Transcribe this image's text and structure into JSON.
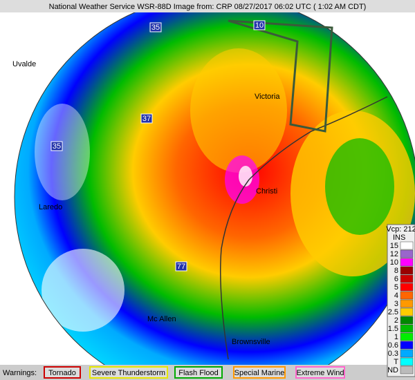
{
  "header": {
    "title": "National Weather Service WSR-88D Image from: CRP 08/27/2017 06:02 UTC ( 1:02 AM CDT)"
  },
  "cities": [
    {
      "label": "Uvalde"
    },
    {
      "label": "Victoria"
    },
    {
      "label": "Laredo"
    },
    {
      "label": "Mc Allen"
    },
    {
      "label": "Brownsville"
    },
    {
      "label": "Christi"
    }
  ],
  "highways": [
    "35",
    "10",
    "37",
    "35",
    "77"
  ],
  "legend": {
    "vcp": "Vcp: 212",
    "unit": "INS",
    "items": [
      {
        "label": "15",
        "color": "#ffffff"
      },
      {
        "label": "12",
        "color": "#9966cc"
      },
      {
        "label": "10",
        "color": "#ff00ff"
      },
      {
        "label": "8",
        "color": "#990000"
      },
      {
        "label": "6",
        "color": "#cc0000"
      },
      {
        "label": "5",
        "color": "#ff0000"
      },
      {
        "label": "4",
        "color": "#ff6600"
      },
      {
        "label": "3",
        "color": "#ff9900"
      },
      {
        "label": "2.5",
        "color": "#ffcc00"
      },
      {
        "label": "2",
        "color": "#008800"
      },
      {
        "label": "1.5",
        "color": "#00bb00"
      },
      {
        "label": "1",
        "color": "#00ee00"
      },
      {
        "label": "0.6",
        "color": "#0000ff"
      },
      {
        "label": "0.3",
        "color": "#00aaff"
      },
      {
        "label": "T",
        "color": "#00ffff"
      },
      {
        "label": "ND",
        "color": "#bbbbbb"
      }
    ]
  },
  "warnings": {
    "label": "Warnings:",
    "items": [
      {
        "label": "Tornado",
        "color": "#cc0000"
      },
      {
        "label": "Severe Thunderstorm",
        "color": "#e6e600"
      },
      {
        "label": "Flash Flood",
        "color": "#00aa00"
      },
      {
        "label": "Special Marine",
        "color": "#ff9900"
      },
      {
        "label": "Extreme Wind",
        "color": "#ff66cc"
      }
    ]
  }
}
